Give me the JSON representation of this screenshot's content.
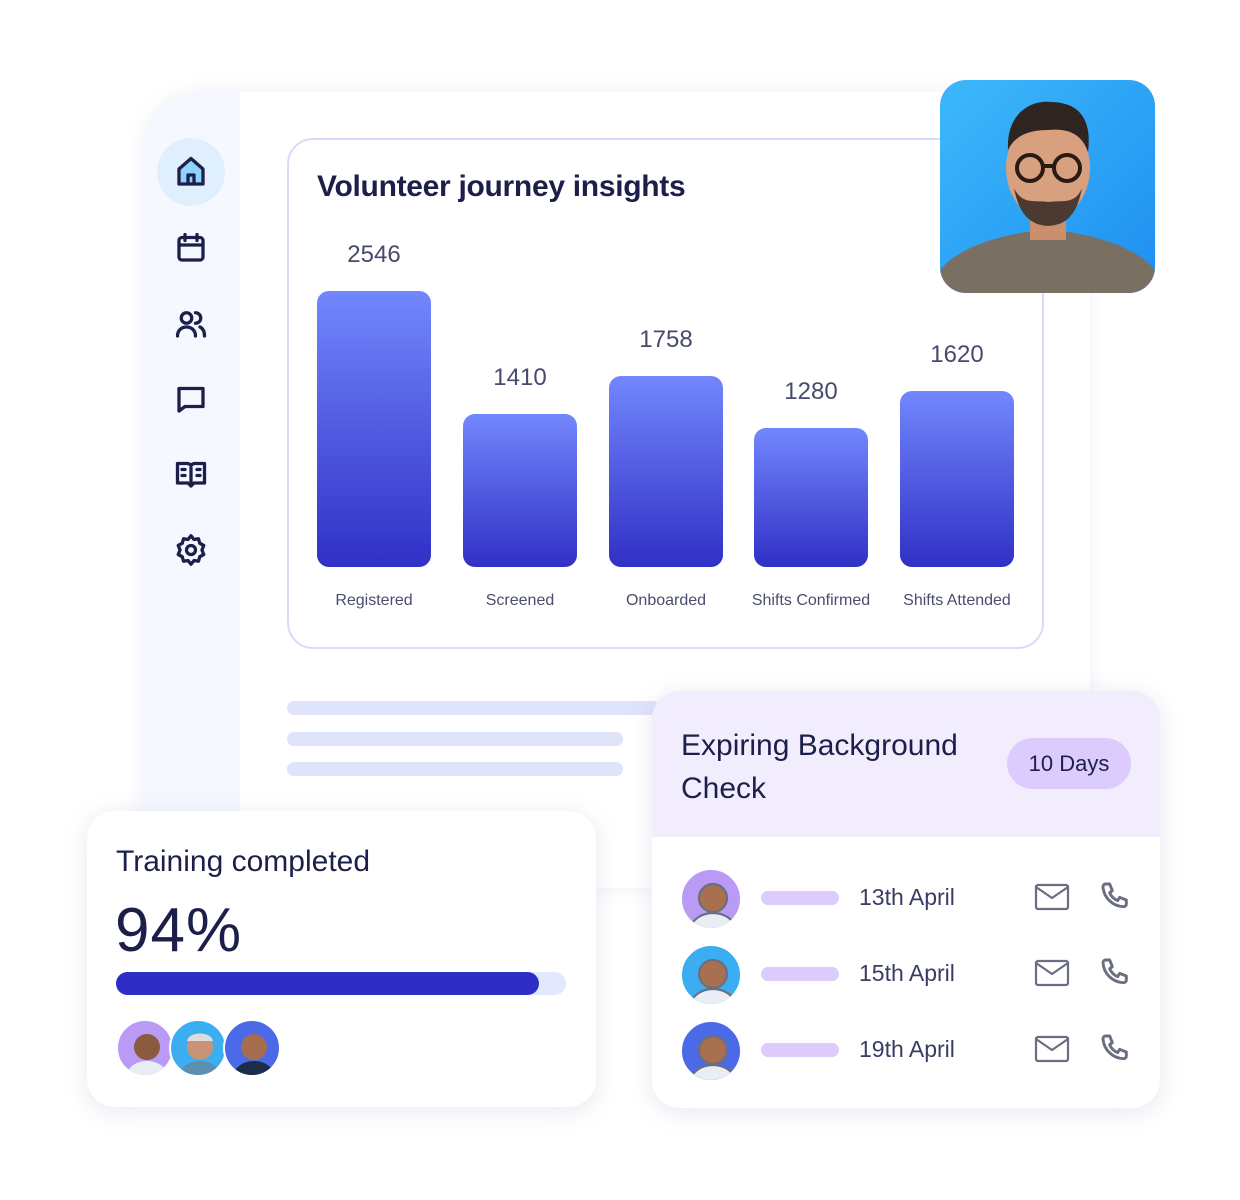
{
  "sidebar": {
    "items": [
      {
        "icon": "home-icon",
        "active": true
      },
      {
        "icon": "calendar-icon"
      },
      {
        "icon": "users-icon"
      },
      {
        "icon": "chat-icon"
      },
      {
        "icon": "book-icon"
      },
      {
        "icon": "settings-icon"
      }
    ]
  },
  "chart_data": {
    "type": "bar",
    "title": "Volunteer journey insights",
    "categories": [
      "Registered",
      "Screened",
      "Onboarded",
      "Shifts Confirmed",
      "Shifts Attended"
    ],
    "values": [
      2546,
      1410,
      1758,
      1280,
      1620
    ],
    "value_labels": [
      "2546",
      "1410",
      "1758",
      "1280",
      "1620"
    ],
    "colors": {
      "bar_top": "#7287fd",
      "bar_bottom": "#3030c5"
    }
  },
  "training": {
    "title": "Training completed",
    "percent_label": "94%",
    "progress": 0.94,
    "bar_color": "#2e2ec4"
  },
  "expiring": {
    "title": "Expiring Background Check",
    "badge": "10 Days",
    "rows": [
      {
        "date": "13th April",
        "avatar_bg": "#b99af5"
      },
      {
        "date": "15th April",
        "avatar_bg": "#3aaef0"
      },
      {
        "date": "19th April",
        "avatar_bg": "#4a6ae8"
      }
    ]
  }
}
